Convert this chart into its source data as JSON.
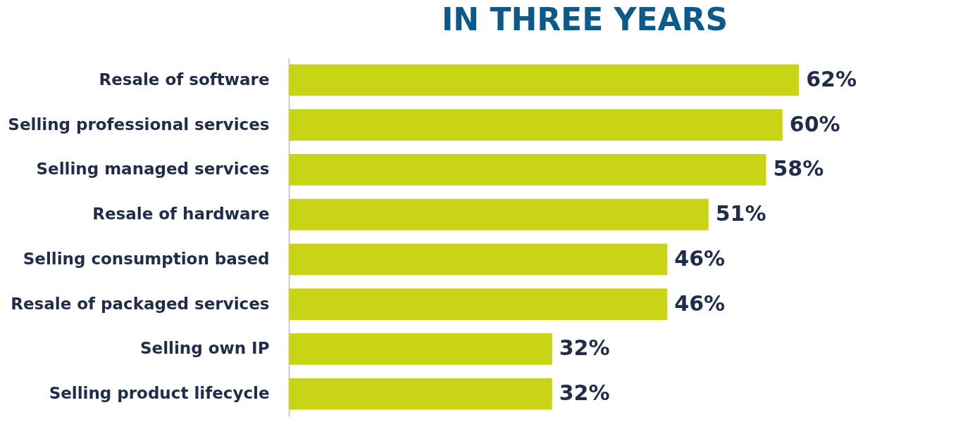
{
  "chart_data": {
    "type": "bar",
    "orientation": "horizontal",
    "title": "IN THREE YEARS",
    "categories": [
      "Resale of software",
      "Selling professional services",
      "Selling managed services",
      "Resale of hardware",
      "Selling consumption based",
      "Resale of packaged services",
      "Selling own IP",
      "Selling product lifecycle"
    ],
    "values": [
      62,
      60,
      58,
      51,
      46,
      46,
      32,
      32
    ],
    "value_labels": [
      "62%",
      "60%",
      "58%",
      "51%",
      "46%",
      "46%",
      "32%",
      "32%"
    ],
    "color": "#c8d414",
    "grid": false,
    "tick_labels": "y"
  }
}
